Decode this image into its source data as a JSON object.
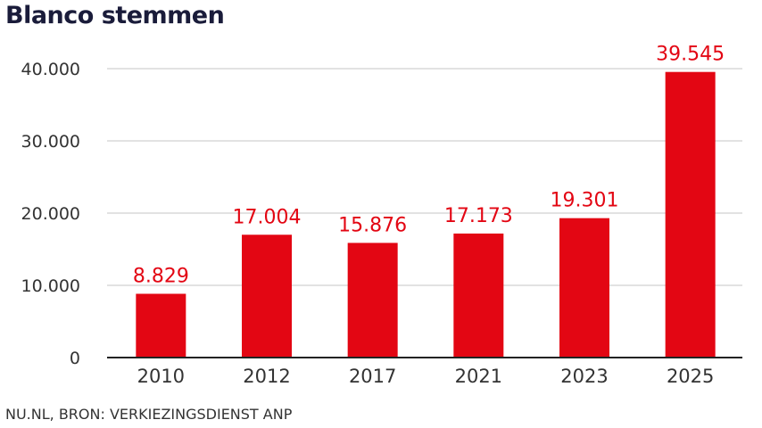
{
  "title": "Blanco stemmen",
  "source": "NU.NL, BRON: VERKIEZINGSDIENST ANP",
  "colors": {
    "bar": "#e30613",
    "label": "#e30613",
    "grid": "#d9d9d9",
    "axis": "#222222"
  },
  "chart_data": {
    "type": "bar",
    "title": "Blanco stemmen",
    "categories": [
      "2010",
      "2012",
      "2017",
      "2021",
      "2023",
      "2025"
    ],
    "values": [
      8829,
      17004,
      15876,
      17173,
      19301,
      39545
    ],
    "data_labels": [
      "8.829",
      "17.004",
      "15.876",
      "17.173",
      "19.301",
      "39.545"
    ],
    "yticks": [
      0,
      10000,
      20000,
      30000,
      40000
    ],
    "ytick_labels": [
      "0",
      "10.000",
      "20.000",
      "30.000",
      "40.000"
    ],
    "ylim": [
      0,
      40000
    ],
    "grid": true,
    "legend": "none"
  }
}
